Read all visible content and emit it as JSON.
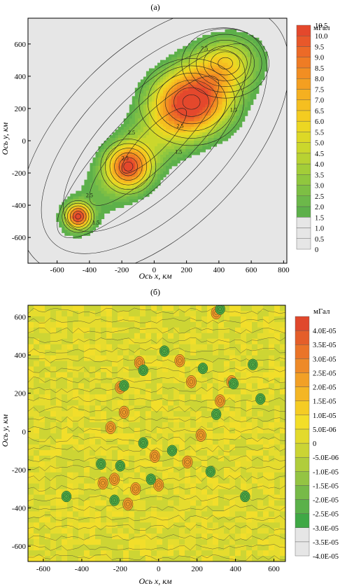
{
  "chart_data": [
    {
      "type": "heatmap",
      "panel_label": "(а)",
      "xlabel": "Ось x, км",
      "ylabel": "Ось y, км",
      "xlim": [
        -780,
        820
      ],
      "ylim": [
        -760,
        760
      ],
      "x_ticks": [
        -600,
        -400,
        -200,
        0,
        200,
        400,
        600,
        800
      ],
      "y_ticks": [
        -600,
        -400,
        -200,
        0,
        200,
        400,
        600
      ],
      "colorbar_unit": "мГал",
      "colorbar_levels": [
        "0",
        "0.5",
        "1.0",
        "1.5",
        "2.0",
        "2.5",
        "3.0",
        "3.5",
        "4.0",
        "4.5",
        "5.0",
        "5.5",
        "6.0",
        "6.5",
        "7.0",
        "7.5",
        "8.0",
        "8.5",
        "9.0",
        "9.5",
        "10.0",
        "10.5"
      ],
      "colorbar_colors": [
        "#e6e6e6",
        "#e6e6e6",
        "#e6e6e6",
        "#5db04a",
        "#6cb84a",
        "#7dbf44",
        "#90c73e",
        "#a3cd38",
        "#b8d232",
        "#cbd72c",
        "#ddd826",
        "#ecd722",
        "#f4cc20",
        "#f5bf20",
        "#f5b020",
        "#f49f20",
        "#f28e22",
        "#ef7c24",
        "#ec6a27",
        "#e8582a",
        "#e4482c"
      ],
      "sources": [
        {
          "x": -470,
          "y": -470,
          "amp": 9.5,
          "sx": 55,
          "sy": 55
        },
        {
          "x": -160,
          "y": -160,
          "amp": 7.5,
          "sx": 95,
          "sy": 95
        },
        {
          "x": 230,
          "y": 240,
          "amp": 8.6,
          "sx": 180,
          "sy": 150
        },
        {
          "x": 440,
          "y": 480,
          "amp": 4.0,
          "sx": 150,
          "sy": 120
        },
        {
          "x": 0,
          "y": 0,
          "amp": 3.2,
          "sx": 520,
          "sy": 140,
          "angle": 45
        }
      ],
      "contour_labels": [
        "7.5",
        "2.5",
        "2.5",
        "2.5",
        "1.5",
        "1.5",
        "1.5",
        "2.5"
      ]
    },
    {
      "type": "heatmap",
      "panel_label": "(б)",
      "xlabel": "Ось x, км",
      "ylabel": "Ось y, км",
      "xlim": [
        -680,
        660
      ],
      "ylim": [
        -680,
        660
      ],
      "x_ticks": [
        -600,
        -400,
        -200,
        0,
        200,
        400,
        600
      ],
      "y_ticks": [
        -600,
        -400,
        -200,
        0,
        200,
        400,
        600
      ],
      "colorbar_unit": "мГал",
      "colorbar_levels": [
        "-4.0E-05",
        "-3.5E-05",
        "-3.0E-05",
        "-2.5E-05",
        "-2.0E-05",
        "-1.5E-05",
        "-1.0E-05",
        "-5.0E-06",
        "0",
        "5.0E-06",
        "1.0E-05",
        "1.5E-05",
        "2.0E-05",
        "2.5E-05",
        "3.0E-05",
        "3.5E-05",
        "4.0E-05"
      ],
      "colorbar_colors": [
        "#e6e6e6",
        "#e6e6e6",
        "#3fa845",
        "#5bb14a",
        "#77ba48",
        "#94c443",
        "#b0cd3c",
        "#cbd434",
        "#e3da2c",
        "#f3de28",
        "#f5cc24",
        "#f4b624",
        "#f2a026",
        "#ee8a28",
        "#ea7428",
        "#e45e2a",
        "#e0482c"
      ],
      "anomalies_positive": [
        [
          -200,
          230
        ],
        [
          -100,
          360
        ],
        [
          110,
          370
        ],
        [
          170,
          260
        ],
        [
          380,
          260
        ],
        [
          -180,
          100
        ],
        [
          -290,
          -270
        ],
        [
          -230,
          -250
        ],
        [
          -120,
          -300
        ],
        [
          -20,
          -130
        ],
        [
          0,
          -280
        ],
        [
          150,
          -160
        ],
        [
          220,
          -20
        ],
        [
          320,
          160
        ],
        [
          -160,
          -380
        ],
        [
          300,
          620
        ],
        [
          -250,
          20
        ]
      ],
      "anomalies_negative": [
        [
          -180,
          240
        ],
        [
          -80,
          320
        ],
        [
          230,
          330
        ],
        [
          300,
          90
        ],
        [
          390,
          250
        ],
        [
          -300,
          -170
        ],
        [
          -200,
          -180
        ],
        [
          -230,
          -360
        ],
        [
          70,
          -100
        ],
        [
          -80,
          -60
        ],
        [
          490,
          350
        ],
        [
          530,
          170
        ],
        [
          -40,
          -250
        ],
        [
          270,
          -210
        ],
        [
          450,
          -340
        ],
        [
          -480,
          -340
        ],
        [
          320,
          640
        ],
        [
          30,
          420
        ]
      ]
    }
  ]
}
